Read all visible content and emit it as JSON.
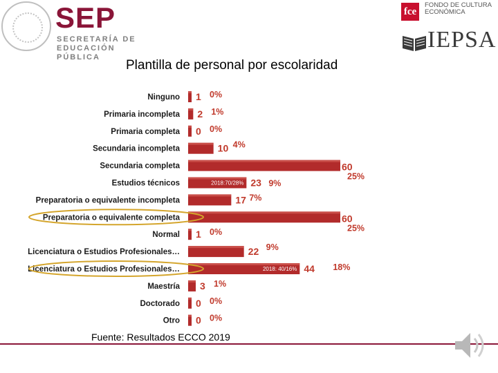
{
  "header": {
    "sep_word": "SEP",
    "sep_subtitle": "SECRETARÍA DE EDUCACIÓN PÚBLICA",
    "fce_mark": "fce",
    "fce_text": "FONDO DE CULTURA ECONÓMICA",
    "iepsa_word": "IEPSA",
    "seal_icon": "mexico-coat-of-arms-icon"
  },
  "colors": {
    "bar": "#b22b2b",
    "value": "#c0392b",
    "highlight": "#d4a52c",
    "brand": "#8a1538"
  },
  "footer": {
    "source": "Fuente: Resultados ECCO 2019",
    "speaker_icon": "speaker-icon"
  },
  "chart_data": {
    "type": "bar",
    "orientation": "horizontal",
    "title": "Plantilla de personal por escolaridad",
    "categories": [
      "Ninguno",
      "Primaria incompleta",
      "Primaria completa",
      "Secundaria incompleta",
      "Secundaria completa",
      "Estudios técnicos",
      "Preparatoria o equivalente incompleta",
      "Preparatoria o equivalente completa",
      "Normal",
      "Licenciatura o Estudios Profesionales…",
      "Licenciatura o Estudios Profesionales…",
      "Maestría",
      "Doctorado",
      "Otro"
    ],
    "values": [
      1,
      2,
      0,
      10,
      60,
      23,
      17,
      60,
      1,
      22,
      44,
      3,
      0,
      0
    ],
    "percent_labels": [
      "0%",
      "1%",
      "0%",
      "4%",
      "25%",
      "9%",
      "7%",
      "25%",
      "0%",
      "9%",
      "18%",
      "1%",
      "0%",
      "0%"
    ],
    "highlighted_categories": [
      7,
      10
    ],
    "annotations": [
      {
        "category_index": 5,
        "text": "2018:70/28%"
      },
      {
        "category_index": 10,
        "text": "2018: 40/16%"
      }
    ],
    "xlim": [
      0,
      60
    ]
  }
}
